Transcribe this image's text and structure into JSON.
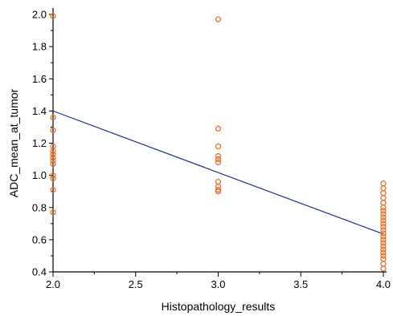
{
  "chart_data": {
    "type": "scatter",
    "xlabel": "Histopathology_results",
    "ylabel": "ADC_mean_at_tumor",
    "xlim": [
      2.0,
      4.0
    ],
    "ylim": [
      0.4,
      2.0
    ],
    "x_ticks": [
      2.0,
      2.5,
      3.0,
      3.5,
      4.0
    ],
    "x_tick_labels": [
      "2.0",
      "2.5",
      "3.0",
      "3.5",
      "4.0"
    ],
    "y_ticks": [
      0.4,
      0.6,
      0.8,
      1.0,
      1.2,
      1.4,
      1.6,
      1.8,
      2.0
    ],
    "y_tick_labels": [
      "0.4",
      "0.6",
      "0.8",
      "1.0",
      "1.2",
      "1.4",
      "1.6",
      "1.8",
      "2.0"
    ],
    "grid": false,
    "marker": "open-circle",
    "colors": {
      "points": "#e8712a",
      "line": "#1f2a9a",
      "axes": "#000000"
    },
    "points": [
      {
        "x": 2.0,
        "y": 1.99
      },
      {
        "x": 2.0,
        "y": 1.36
      },
      {
        "x": 2.0,
        "y": 1.28
      },
      {
        "x": 2.0,
        "y": 1.18
      },
      {
        "x": 2.0,
        "y": 1.15
      },
      {
        "x": 2.0,
        "y": 1.13
      },
      {
        "x": 2.0,
        "y": 1.11
      },
      {
        "x": 2.0,
        "y": 1.09
      },
      {
        "x": 2.0,
        "y": 1.07
      },
      {
        "x": 2.0,
        "y": 1.0
      },
      {
        "x": 2.0,
        "y": 0.98
      },
      {
        "x": 2.0,
        "y": 0.91
      },
      {
        "x": 2.0,
        "y": 0.77
      },
      {
        "x": 3.0,
        "y": 1.97
      },
      {
        "x": 3.0,
        "y": 1.29
      },
      {
        "x": 3.0,
        "y": 1.18
      },
      {
        "x": 3.0,
        "y": 1.12
      },
      {
        "x": 3.0,
        "y": 1.1
      },
      {
        "x": 3.0,
        "y": 1.08
      },
      {
        "x": 3.0,
        "y": 0.96
      },
      {
        "x": 3.0,
        "y": 0.93
      },
      {
        "x": 3.0,
        "y": 0.91
      },
      {
        "x": 3.0,
        "y": 0.9
      },
      {
        "x": 4.0,
        "y": 0.95
      },
      {
        "x": 4.0,
        "y": 0.92
      },
      {
        "x": 4.0,
        "y": 0.89
      },
      {
        "x": 4.0,
        "y": 0.86
      },
      {
        "x": 4.0,
        "y": 0.83
      },
      {
        "x": 4.0,
        "y": 0.8
      },
      {
        "x": 4.0,
        "y": 0.78
      },
      {
        "x": 4.0,
        "y": 0.76
      },
      {
        "x": 4.0,
        "y": 0.74
      },
      {
        "x": 4.0,
        "y": 0.72
      },
      {
        "x": 4.0,
        "y": 0.7
      },
      {
        "x": 4.0,
        "y": 0.68
      },
      {
        "x": 4.0,
        "y": 0.66
      },
      {
        "x": 4.0,
        "y": 0.64
      },
      {
        "x": 4.0,
        "y": 0.62
      },
      {
        "x": 4.0,
        "y": 0.6
      },
      {
        "x": 4.0,
        "y": 0.58
      },
      {
        "x": 4.0,
        "y": 0.56
      },
      {
        "x": 4.0,
        "y": 0.54
      },
      {
        "x": 4.0,
        "y": 0.52
      },
      {
        "x": 4.0,
        "y": 0.5
      },
      {
        "x": 4.0,
        "y": 0.48
      },
      {
        "x": 4.0,
        "y": 0.45
      },
      {
        "x": 4.0,
        "y": 0.42
      }
    ],
    "regression_line": {
      "x": [
        2.0,
        4.0
      ],
      "y": [
        1.4,
        0.635
      ]
    }
  }
}
